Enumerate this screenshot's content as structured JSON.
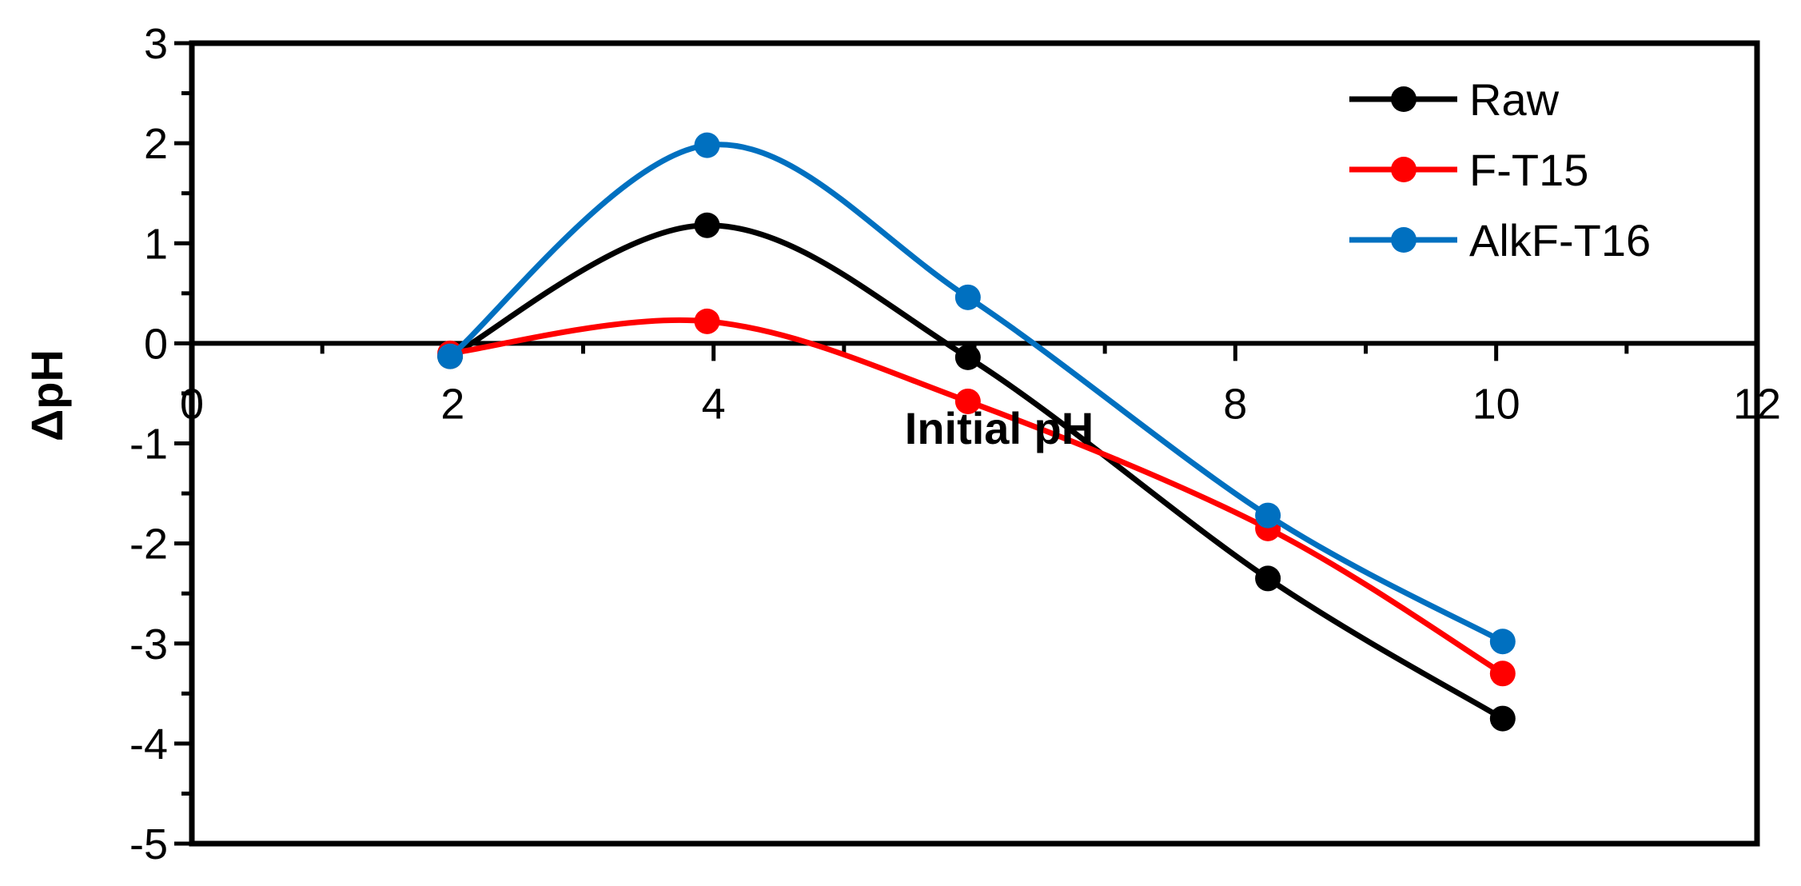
{
  "chart_data": {
    "type": "line",
    "xlabel": "Initial pH",
    "ylabel": "ΔpH",
    "xlim": [
      0,
      12
    ],
    "ylim": [
      -5,
      3
    ],
    "x_ticks": [
      0,
      2,
      4,
      8,
      10,
      12
    ],
    "x_tick_labels": [
      "0",
      "2",
      "4",
      "8",
      "10",
      "12"
    ],
    "y_ticks": [
      3,
      2,
      1,
      0,
      -1,
      -2,
      -3,
      -4,
      -5
    ],
    "y_tick_labels": [
      "3",
      "2",
      "1",
      "0",
      "-1",
      "-2",
      "-3",
      "-4",
      "-5"
    ],
    "grid": false,
    "smooth": true,
    "legend_position": "top-right",
    "series": [
      {
        "name": "Raw",
        "color": "#000000",
        "points": [
          [
            1.98,
            -0.13
          ],
          [
            3.95,
            1.18
          ],
          [
            5.95,
            -0.14
          ],
          [
            8.25,
            -2.35
          ],
          [
            10.05,
            -3.75
          ]
        ]
      },
      {
        "name": "F-T15",
        "color": "#ff0000",
        "points": [
          [
            1.98,
            -0.1
          ],
          [
            3.95,
            0.22
          ],
          [
            5.95,
            -0.58
          ],
          [
            8.25,
            -1.85
          ],
          [
            10.05,
            -3.3
          ]
        ]
      },
      {
        "name": "AlkF-T16",
        "color": "#0070c0",
        "points": [
          [
            1.98,
            -0.13
          ],
          [
            3.95,
            1.98
          ],
          [
            5.95,
            0.46
          ],
          [
            8.25,
            -1.72
          ],
          [
            10.05,
            -2.98
          ]
        ]
      }
    ]
  }
}
